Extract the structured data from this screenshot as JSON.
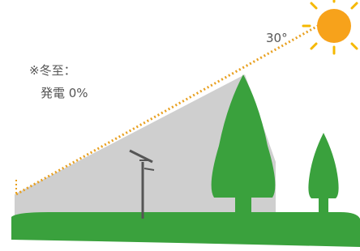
{
  "angle_label": "30°",
  "note": {
    "line1": "※冬至：",
    "line2": "発電 0%"
  }
}
